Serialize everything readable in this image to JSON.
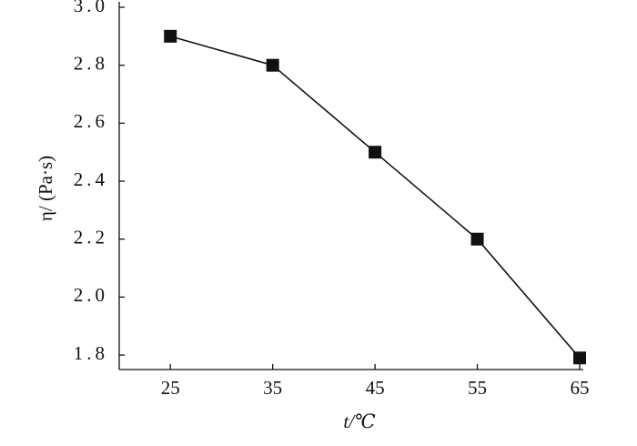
{
  "chart_data": {
    "type": "line",
    "x_label": "t/℃",
    "y_label": "η/ (Pa·s)",
    "x": [
      25,
      35,
      45,
      55,
      65
    ],
    "series": [
      {
        "color": "#111111",
        "values": [
          2.9,
          2.8,
          2.5,
          2.2,
          1.79
        ]
      }
    ],
    "xlim": [
      20,
      65
    ],
    "xticks": [
      25,
      35,
      45,
      55,
      65
    ],
    "ylim": [
      1.75,
      3.0
    ],
    "yticks": [
      1.8,
      {
        "value": 2,
        "label": "2.0"
      },
      2.2,
      2.4,
      2.6,
      2.8,
      {
        "value": 3,
        "label": "3.0"
      }
    ],
    "grid": false
  }
}
